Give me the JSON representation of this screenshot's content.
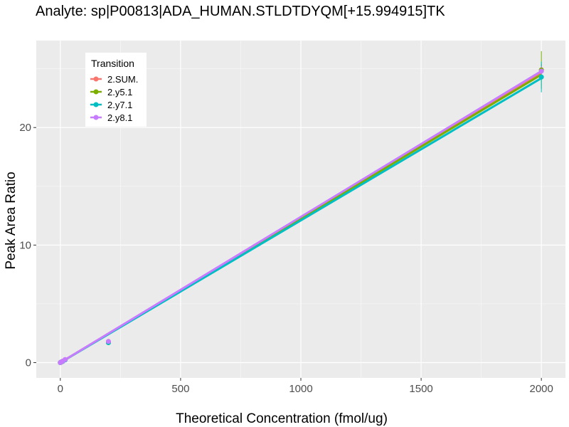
{
  "chart_data": {
    "type": "scatter",
    "title": "Analyte: sp|P00813|ADA_HUMAN.STLDTDYQM[+15.994915]TK",
    "xlabel": "Theoretical Concentration (fmol/ug)",
    "ylabel": "Peak Area Ratio",
    "xlim": [
      -100,
      2100
    ],
    "ylim": [
      -1.3,
      27.4
    ],
    "xticks": [
      0,
      500,
      1000,
      1500,
      2000
    ],
    "xtick_labels": [
      "0",
      "500",
      "1000",
      "1500",
      "2000"
    ],
    "yticks": [
      0,
      10,
      20
    ],
    "ytick_labels": [
      "0",
      "10",
      "20"
    ],
    "grid": true,
    "background": "#ebebeb",
    "legend": {
      "title": "Transition",
      "position": "top-left"
    },
    "series": [
      {
        "name": "2.SUM.",
        "color": "#f8766d",
        "x": [
          0,
          2,
          5,
          10,
          20,
          200,
          2000
        ],
        "y": [
          0.0,
          0.03,
          0.07,
          0.12,
          0.25,
          1.8,
          24.9
        ],
        "error": [
          0.02,
          0.02,
          0.02,
          0.03,
          0.05,
          0.15,
          0.5
        ],
        "fit": {
          "slope": 0.01235,
          "intercept": 0.0
        }
      },
      {
        "name": "2.y5.1",
        "color": "#7cae00",
        "x": [
          0,
          2,
          5,
          10,
          20,
          200,
          2000
        ],
        "y": [
          0.0,
          0.03,
          0.06,
          0.11,
          0.24,
          1.7,
          24.9
        ],
        "error": [
          0.02,
          0.02,
          0.02,
          0.03,
          0.05,
          0.15,
          1.6
        ],
        "fit": {
          "slope": 0.01225,
          "intercept": 0.0
        }
      },
      {
        "name": "2.y7.1",
        "color": "#00bfc4",
        "x": [
          0,
          2,
          5,
          10,
          20,
          200,
          2000
        ],
        "y": [
          0.0,
          0.03,
          0.06,
          0.11,
          0.23,
          1.7,
          24.3
        ],
        "error": [
          0.02,
          0.02,
          0.02,
          0.03,
          0.05,
          0.15,
          1.3
        ],
        "fit": {
          "slope": 0.0121,
          "intercept": 0.0
        }
      },
      {
        "name": "2.y8.1",
        "color": "#c77cff",
        "x": [
          0,
          2,
          5,
          10,
          20,
          200,
          2000
        ],
        "y": [
          0.0,
          0.03,
          0.07,
          0.12,
          0.26,
          1.8,
          24.8
        ],
        "error": [
          0.02,
          0.02,
          0.02,
          0.03,
          0.05,
          0.15,
          0.4
        ],
        "fit": {
          "slope": 0.0124,
          "intercept": 0.0
        }
      }
    ]
  }
}
